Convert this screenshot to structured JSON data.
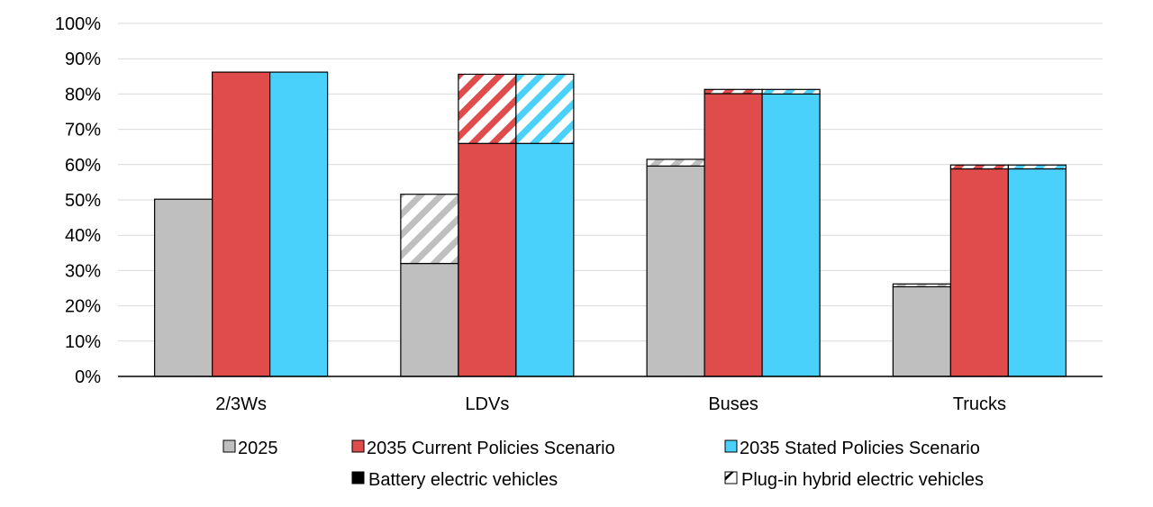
{
  "chart_data": {
    "type": "bar",
    "stacked": true,
    "categories": [
      "2/3Ws",
      "LDVs",
      "Buses",
      "Trucks"
    ],
    "ylim": [
      0,
      100
    ],
    "yticks": [
      "0%",
      "10%",
      "20%",
      "30%",
      "40%",
      "50%",
      "60%",
      "70%",
      "80%",
      "90%",
      "100%"
    ],
    "grid": true,
    "legend_position": "bottom",
    "series": [
      {
        "name": "2025",
        "color": "#bfbfbf",
        "bev": [
          50.2,
          32.0,
          59.6,
          25.4
        ],
        "phev": [
          0,
          19.6,
          1.9,
          0.8
        ]
      },
      {
        "name": "2035 Current Policies Scenario",
        "color": "#e04b4b",
        "bev": [
          86.2,
          66.0,
          80.1,
          58.8
        ],
        "phev": [
          0,
          19.6,
          1.2,
          1.1
        ]
      },
      {
        "name": "2035 Stated Policies Scenario",
        "color": "#49d1fb",
        "bev": [
          86.2,
          66.0,
          80.0,
          58.8
        ],
        "phev": [
          0,
          19.6,
          1.3,
          1.1
        ]
      }
    ],
    "legend": {
      "series": [
        "2025",
        "2035 Current Policies Scenario",
        "2035 Stated Policies Scenario"
      ],
      "bev_label": "Battery electric vehicles",
      "phev_label": "Plug-in hybrid electric vehicles"
    }
  }
}
